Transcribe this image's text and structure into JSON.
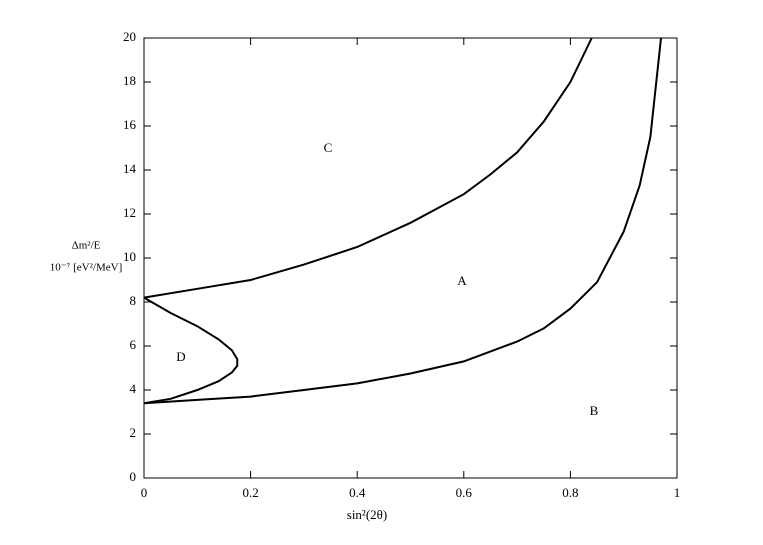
{
  "chart_data": {
    "type": "line",
    "x_label": "sin²(2θ)",
    "y_label": {
      "line1": "Δm²/E",
      "line2": "10⁻⁷ [eV²/MeV]"
    },
    "xlim": [
      0,
      1
    ],
    "xticks": [
      0,
      0.2,
      0.4,
      0.6,
      0.8,
      1
    ],
    "ylim": [
      0,
      20
    ],
    "yticks": [
      0,
      2,
      4,
      6,
      8,
      10,
      12,
      14,
      16,
      18,
      20
    ],
    "annotations": [
      "A",
      "B",
      "C",
      "D"
    ],
    "series": [
      {
        "color": "#000000",
        "x": [
          0,
          0.1,
          0.2,
          0.3,
          0.4,
          0.5,
          0.6,
          0.65,
          0.7,
          0.75,
          0.8,
          0.84
        ],
        "values": [
          8.2,
          8.6,
          9.0,
          9.7,
          10.5,
          11.6,
          12.9,
          13.8,
          14.8,
          16.2,
          18.0,
          20
        ]
      },
      {
        "color": "#000000",
        "x": [
          0,
          0.1,
          0.2,
          0.3,
          0.4,
          0.5,
          0.6,
          0.7,
          0.75,
          0.8,
          0.85,
          0.9,
          0.93,
          0.95,
          0.97
        ],
        "values": [
          3.4,
          3.55,
          3.7,
          4.0,
          4.3,
          4.75,
          5.3,
          6.2,
          6.8,
          7.7,
          8.9,
          11.2,
          13.3,
          15.5,
          20
        ]
      },
      {
        "color": "#000000",
        "x": [
          0,
          0.05,
          0.1,
          0.14,
          0.165,
          0.175,
          0.175,
          0.165,
          0.14,
          0.1,
          0.05,
          0
        ],
        "values": [
          8.2,
          7.5,
          6.9,
          6.3,
          5.8,
          5.4,
          5.1,
          4.8,
          4.4,
          4.0,
          3.6,
          3.4
        ]
      }
    ]
  }
}
